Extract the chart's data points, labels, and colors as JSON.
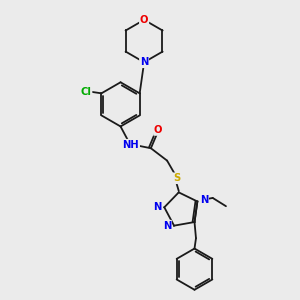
{
  "bg_color": "#ebebeb",
  "bond_color": "#1a1a1a",
  "N_color": "#0000ee",
  "O_color": "#ee0000",
  "S_color": "#ccaa00",
  "Cl_color": "#00aa00",
  "lw": 1.3,
  "fs": 7.2,
  "xlim": [
    0,
    10
  ],
  "ylim": [
    0,
    10
  ]
}
